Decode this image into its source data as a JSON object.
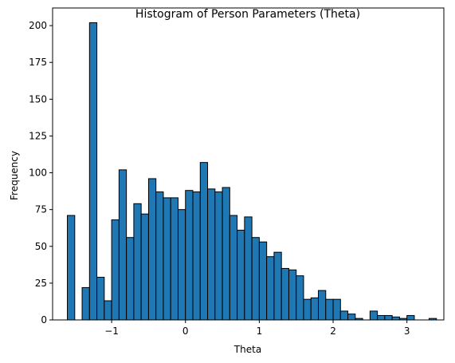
{
  "chart_data": {
    "type": "bar",
    "title": "Histogram of Person Parameters (Theta)",
    "xlabel": "Theta",
    "ylabel": "Frequency",
    "xlim": [
      -1.8,
      3.5
    ],
    "ylim": [
      0,
      212
    ],
    "x_ticks": [
      {
        "value": -1,
        "label": "−1"
      },
      {
        "value": 0,
        "label": "0"
      },
      {
        "value": 1,
        "label": "1"
      },
      {
        "value": 2,
        "label": "2"
      },
      {
        "value": 3,
        "label": "3"
      }
    ],
    "y_ticks": [
      {
        "value": 0,
        "label": "0"
      },
      {
        "value": 25,
        "label": "25"
      },
      {
        "value": 50,
        "label": "50"
      },
      {
        "value": 75,
        "label": "75"
      },
      {
        "value": 100,
        "label": "100"
      },
      {
        "value": 125,
        "label": "125"
      },
      {
        "value": 150,
        "label": "150"
      },
      {
        "value": 175,
        "label": "175"
      },
      {
        "value": 200,
        "label": "200"
      }
    ],
    "bin_start": -1.6,
    "bin_width": 0.1,
    "values": [
      71,
      0,
      22,
      202,
      29,
      13,
      68,
      102,
      56,
      79,
      72,
      96,
      87,
      83,
      83,
      75,
      88,
      87,
      107,
      89,
      87,
      90,
      71,
      61,
      70,
      56,
      53,
      43,
      46,
      35,
      34,
      30,
      14,
      15,
      20,
      14,
      14,
      6,
      4,
      1,
      0,
      6,
      3,
      3,
      2,
      1,
      3,
      0,
      0,
      1
    ],
    "bar_color": "#1f77b4",
    "edge_color": "#000000",
    "grid": false
  }
}
